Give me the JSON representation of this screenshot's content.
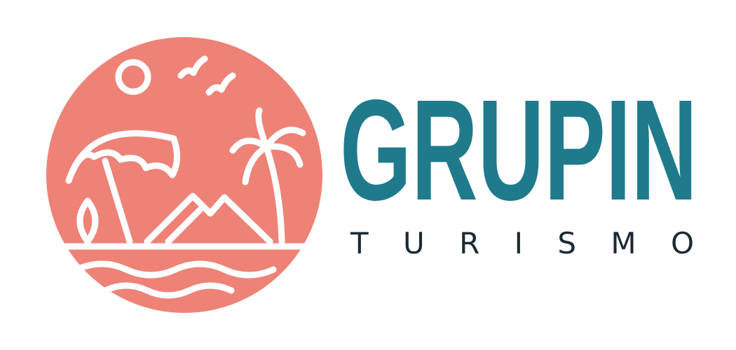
{
  "brand": {
    "name": "GRUPIN",
    "tagline": "TURISMO"
  }
}
